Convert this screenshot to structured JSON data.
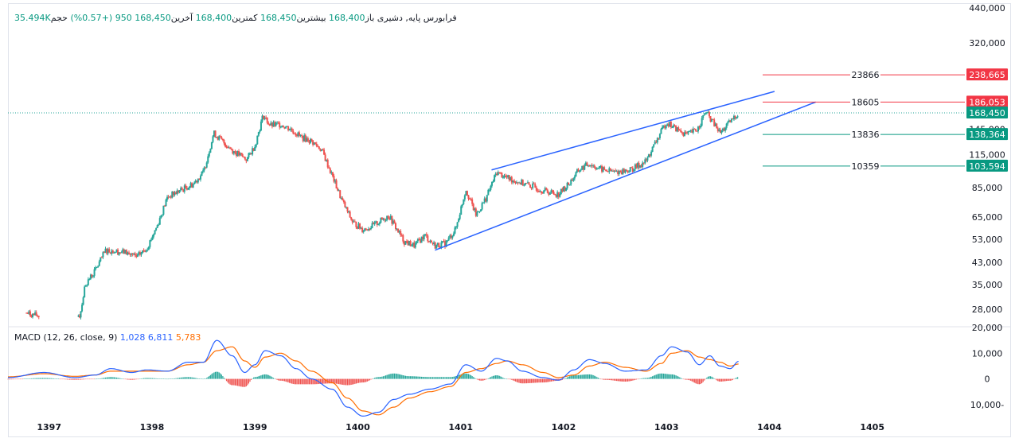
{
  "header": {
    "name": "فرابورس پایه",
    "exchange": "دشیری",
    "open_label": "باز",
    "open": "168,400",
    "high_label": "بیشترین",
    "high": "168,450",
    "low_label": "کمترین",
    "low": "168,400",
    "close_label": "آخرین",
    "close": "168,450",
    "change": "950 (+0.57%)",
    "volume_label": "حجم",
    "volume": "35.494K"
  },
  "macd": {
    "label": "MACD (12, 26, close, 9)",
    "hist": "1,028",
    "macd": "6,811",
    "signal": "5,783",
    "macd_color": "#2962ff",
    "signal_color": "#ff6d00",
    "hist_up_color": "#26a69a",
    "hist_down_color": "#ef5350"
  },
  "chart_data": [
    {
      "type": "candlestick",
      "y_scale": "log",
      "ylim": [
        24000,
        440000
      ],
      "y_ticks": [
        "440,000",
        "320,000",
        "145,000",
        "115,000",
        "85,000",
        "65,000",
        "53,000",
        "43,000",
        "35,000",
        "28,000",
        "20,000"
      ],
      "x_ticks": [
        "1397",
        "1398",
        "1399",
        "1400",
        "1401",
        "1402",
        "1403",
        "1404",
        "1405"
      ],
      "x_range": [
        1396.6,
        1405.9
      ],
      "approx_close": [
        [
          1396.78,
          27000
        ],
        [
          1396.85,
          26500
        ],
        [
          1397.1,
          26000
        ],
        [
          1397.3,
          26500
        ],
        [
          1397.35,
          35000
        ],
        [
          1397.45,
          40000
        ],
        [
          1397.55,
          48000
        ],
        [
          1397.75,
          47000
        ],
        [
          1397.85,
          45000
        ],
        [
          1397.95,
          49000
        ],
        [
          1398.05,
          60000
        ],
        [
          1398.15,
          78000
        ],
        [
          1398.25,
          82000
        ],
        [
          1398.4,
          88000
        ],
        [
          1398.5,
          98000
        ],
        [
          1398.6,
          140000
        ],
        [
          1398.7,
          128000
        ],
        [
          1398.8,
          118000
        ],
        [
          1398.92,
          110000
        ],
        [
          1399.0,
          125000
        ],
        [
          1399.08,
          165000
        ],
        [
          1399.15,
          150000
        ],
        [
          1399.25,
          152000
        ],
        [
          1399.35,
          145000
        ],
        [
          1399.45,
          135000
        ],
        [
          1399.55,
          130000
        ],
        [
          1399.65,
          120000
        ],
        [
          1399.75,
          95000
        ],
        [
          1399.85,
          75000
        ],
        [
          1399.95,
          62000
        ],
        [
          1400.05,
          58000
        ],
        [
          1400.15,
          60000
        ],
        [
          1400.3,
          66000
        ],
        [
          1400.45,
          52000
        ],
        [
          1400.55,
          50000
        ],
        [
          1400.65,
          55000
        ],
        [
          1400.75,
          50000
        ],
        [
          1400.85,
          51000
        ],
        [
          1400.95,
          58000
        ],
        [
          1401.05,
          84000
        ],
        [
          1401.15,
          66000
        ],
        [
          1401.25,
          78000
        ],
        [
          1401.35,
          98000
        ],
        [
          1401.45,
          93000
        ],
        [
          1401.55,
          90000
        ],
        [
          1401.7,
          86000
        ],
        [
          1401.8,
          83000
        ],
        [
          1401.95,
          80000
        ],
        [
          1402.05,
          88000
        ],
        [
          1402.15,
          100000
        ],
        [
          1402.25,
          106000
        ],
        [
          1402.35,
          101000
        ],
        [
          1402.5,
          98000
        ],
        [
          1402.65,
          100000
        ],
        [
          1402.8,
          108000
        ],
        [
          1402.9,
          130000
        ],
        [
          1403.0,
          155000
        ],
        [
          1403.1,
          145000
        ],
        [
          1403.2,
          138000
        ],
        [
          1403.3,
          145000
        ],
        [
          1403.38,
          170000
        ],
        [
          1403.45,
          155000
        ],
        [
          1403.52,
          140000
        ],
        [
          1403.6,
          152000
        ],
        [
          1403.65,
          160000
        ],
        [
          1403.7,
          168450
        ]
      ],
      "price_labels": [
        {
          "value": "238,665",
          "kind": "resistance"
        },
        {
          "value": "186,053",
          "kind": "resistance"
        },
        {
          "value": "168,450",
          "kind": "last"
        },
        {
          "value": "138,364",
          "kind": "support"
        },
        {
          "value": "103,594",
          "kind": "support"
        }
      ],
      "level_annotations": [
        {
          "text": "23866",
          "level": 238665,
          "kind": "resistance"
        },
        {
          "text": "18605",
          "level": 186053,
          "kind": "resistance"
        },
        {
          "text": "13836",
          "level": 138364,
          "kind": "support"
        },
        {
          "text": "10359",
          "level": 103594,
          "kind": "support"
        }
      ],
      "trendlines": [
        {
          "name": "upper-channel",
          "from": [
            1401.3,
            100000
          ],
          "to": [
            1404.05,
            205000
          ]
        },
        {
          "name": "lower-channel",
          "from": [
            1400.75,
            48000
          ],
          "to": [
            1404.45,
            186053
          ]
        }
      ],
      "colors": {
        "up": "#26a69a",
        "down": "#ef5350",
        "trend": "#2962ff",
        "resistance": "#f23645",
        "support": "#089981"
      }
    },
    {
      "type": "line",
      "y_ticks": [
        "20,000",
        "10,000",
        "0",
        "10,000-"
      ],
      "ylim": [
        -15000,
        20000
      ],
      "series": [
        {
          "name": "MACD",
          "points": [
            [
              1396.6,
              500
            ],
            [
              1396.95,
              2500
            ],
            [
              1397.25,
              500
            ],
            [
              1397.45,
              1500
            ],
            [
              1397.6,
              4000
            ],
            [
              1397.8,
              2500
            ],
            [
              1397.95,
              3500
            ],
            [
              1398.15,
              3000
            ],
            [
              1398.35,
              6500
            ],
            [
              1398.5,
              6500
            ],
            [
              1398.63,
              15000
            ],
            [
              1398.78,
              9000
            ],
            [
              1398.9,
              2500
            ],
            [
              1399.0,
              5500
            ],
            [
              1399.1,
              11000
            ],
            [
              1399.25,
              9000
            ],
            [
              1399.4,
              4000
            ],
            [
              1399.55,
              0
            ],
            [
              1399.75,
              -4000
            ],
            [
              1399.9,
              -11000
            ],
            [
              1400.05,
              -14500
            ],
            [
              1400.2,
              -13000
            ],
            [
              1400.35,
              -8000
            ],
            [
              1400.5,
              -6000
            ],
            [
              1400.7,
              -4000
            ],
            [
              1400.9,
              -2000
            ],
            [
              1401.05,
              5500
            ],
            [
              1401.2,
              3000
            ],
            [
              1401.35,
              8000
            ],
            [
              1401.45,
              7000
            ],
            [
              1401.6,
              3000
            ],
            [
              1401.8,
              500
            ],
            [
              1401.95,
              -500
            ],
            [
              1402.1,
              3500
            ],
            [
              1402.25,
              7500
            ],
            [
              1402.4,
              6000
            ],
            [
              1402.6,
              3000
            ],
            [
              1402.8,
              3500
            ],
            [
              1402.95,
              9000
            ],
            [
              1403.05,
              12500
            ],
            [
              1403.2,
              10500
            ],
            [
              1403.32,
              5500
            ],
            [
              1403.42,
              9000
            ],
            [
              1403.52,
              5000
            ],
            [
              1403.62,
              4000
            ],
            [
              1403.7,
              6811
            ]
          ]
        },
        {
          "name": "Signal",
          "points": [
            [
              1396.6,
              800
            ],
            [
              1396.95,
              2000
            ],
            [
              1397.25,
              1000
            ],
            [
              1397.45,
              1500
            ],
            [
              1397.6,
              3000
            ],
            [
              1397.8,
              3000
            ],
            [
              1397.95,
              3000
            ],
            [
              1398.15,
              3000
            ],
            [
              1398.35,
              5500
            ],
            [
              1398.5,
              6500
            ],
            [
              1398.63,
              11000
            ],
            [
              1398.78,
              12500
            ],
            [
              1398.9,
              7000
            ],
            [
              1399.0,
              4500
            ],
            [
              1399.1,
              8500
            ],
            [
              1399.25,
              10000
            ],
            [
              1399.4,
              7000
            ],
            [
              1399.55,
              3000
            ],
            [
              1399.75,
              -1500
            ],
            [
              1399.9,
              -7500
            ],
            [
              1400.05,
              -12500
            ],
            [
              1400.2,
              -14000
            ],
            [
              1400.35,
              -11000
            ],
            [
              1400.5,
              -7500
            ],
            [
              1400.7,
              -5000
            ],
            [
              1400.9,
              -3000
            ],
            [
              1401.05,
              2500
            ],
            [
              1401.2,
              4000
            ],
            [
              1401.35,
              6000
            ],
            [
              1401.45,
              7000
            ],
            [
              1401.6,
              5500
            ],
            [
              1401.8,
              2500
            ],
            [
              1401.95,
              500
            ],
            [
              1402.1,
              1500
            ],
            [
              1402.25,
              5000
            ],
            [
              1402.4,
              6500
            ],
            [
              1402.6,
              4500
            ],
            [
              1402.8,
              3000
            ],
            [
              1402.95,
              6000
            ],
            [
              1403.05,
              10000
            ],
            [
              1403.2,
              11000
            ],
            [
              1403.32,
              8500
            ],
            [
              1403.42,
              7500
            ],
            [
              1403.52,
              6500
            ],
            [
              1403.62,
              5000
            ],
            [
              1403.7,
              5783
            ]
          ]
        }
      ]
    }
  ]
}
